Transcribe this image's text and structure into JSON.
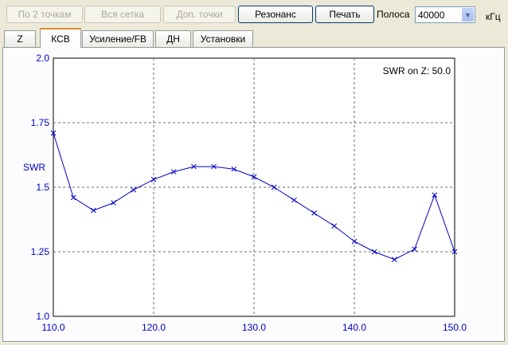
{
  "toolbar": {
    "by_two_points": "По 2 точкам",
    "whole_grid": "Вся сетка",
    "extra_points": "Доп. точки",
    "resonance": "Резонанс",
    "print": "Печать",
    "band_label": "Полоса",
    "band_value": "40000",
    "unit": "кГц"
  },
  "tabs": [
    "Z",
    "КСВ",
    "Усиление/FB",
    "ДН",
    "Установки"
  ],
  "selected_tab": "КСВ",
  "chart_data": {
    "type": "line",
    "ylabel": "SWR",
    "annotation": "SWR on Z: 50.0",
    "xlim": [
      110.0,
      150.0
    ],
    "ylim": [
      1.0,
      2.0
    ],
    "x_ticks": [
      "110.0",
      "120.0",
      "130.0",
      "140.0",
      "150.0"
    ],
    "y_ticks": [
      "1.0",
      "1.25",
      "1.5",
      "1.75",
      "2.0"
    ],
    "grid": true,
    "series": [
      {
        "color": "#0000c8",
        "x": [
          110,
          112,
          114,
          116,
          118,
          120,
          122,
          124,
          126,
          128,
          130,
          132,
          134,
          136,
          138,
          140,
          142,
          144,
          146,
          148,
          150
        ],
        "y": [
          1.71,
          1.46,
          1.41,
          1.44,
          1.49,
          1.53,
          1.56,
          1.58,
          1.58,
          1.57,
          1.54,
          1.5,
          1.45,
          1.4,
          1.35,
          1.29,
          1.25,
          1.22,
          1.26,
          1.47,
          1.25
        ]
      }
    ]
  }
}
